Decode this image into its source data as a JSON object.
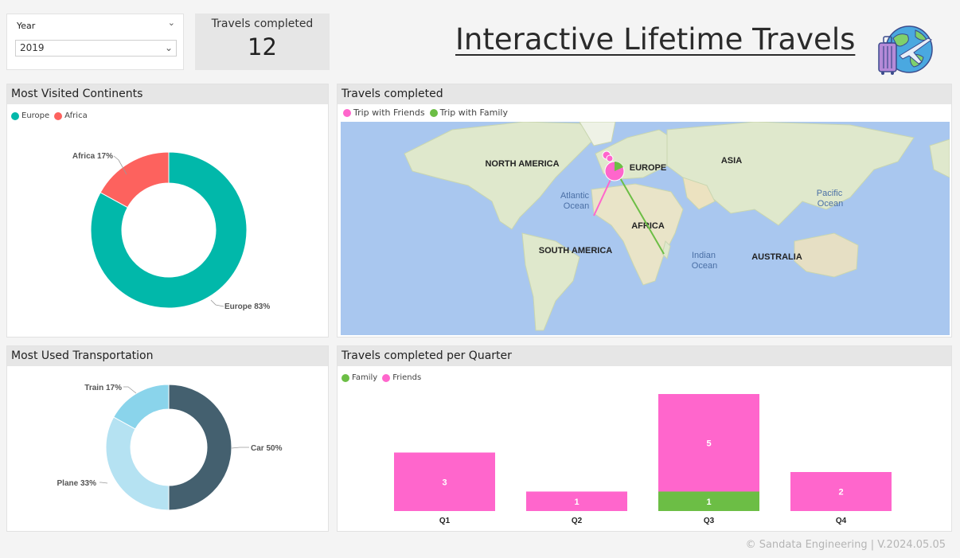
{
  "slicer": {
    "label": "Year",
    "value": "2019"
  },
  "kpi": {
    "label": "Travels completed",
    "value": "12"
  },
  "title": "Interactive Lifetime Travels",
  "footer": "© Sandata Engineering | V.2024.05.05",
  "colors": {
    "europe": "#01b8aa",
    "africa": "#fd625e",
    "friends": "#ff66cc",
    "family": "#6cbe45",
    "car": "#44606f",
    "plane": "#b5e2f2",
    "train": "#8ad4eb",
    "ocean": "#a9c7ef",
    "land": "#dfe8cc"
  },
  "chart_data": [
    {
      "type": "pie",
      "title": "Most Visited Continents",
      "legend_position": "top-left",
      "legend": [
        "Europe",
        "Africa"
      ],
      "slices": [
        {
          "name": "Europe",
          "value": 83,
          "label": "Europe 83%"
        },
        {
          "name": "Africa",
          "value": 17,
          "label": "Africa 17%"
        }
      ]
    },
    {
      "type": "scatter",
      "title": "Travels completed",
      "legend_position": "top-left",
      "legend": [
        "Trip with Friends",
        "Trip with Family"
      ],
      "map_labels": {
        "north_america": "NORTH AMERICA",
        "europe": "EUROPE",
        "asia": "ASIA",
        "africa": "AFRICA",
        "south_america": "SOUTH AMERICA",
        "australia": "AUSTRALIA",
        "atlantic_1": "Atlantic",
        "atlantic_2": "Ocean",
        "pacific_1": "Pacific",
        "pacific_2": "Ocean",
        "indian_1": "Indian",
        "indian_2": "Ocean"
      }
    },
    {
      "type": "pie",
      "title": "Most Used Transportation",
      "slices": [
        {
          "name": "Car",
          "value": 50,
          "label": "Car 50%"
        },
        {
          "name": "Plane",
          "value": 33,
          "label": "Plane 33%"
        },
        {
          "name": "Train",
          "value": 17,
          "label": "Train 17%"
        }
      ]
    },
    {
      "type": "bar",
      "title": "Travels completed per Quarter",
      "legend_position": "top-left",
      "legend": [
        "Family",
        "Friends"
      ],
      "categories": [
        "Q1",
        "Q2",
        "Q3",
        "Q4"
      ],
      "series": [
        {
          "name": "Family",
          "values": [
            0,
            0,
            1,
            0
          ]
        },
        {
          "name": "Friends",
          "values": [
            3,
            1,
            5,
            2
          ]
        }
      ]
    }
  ]
}
